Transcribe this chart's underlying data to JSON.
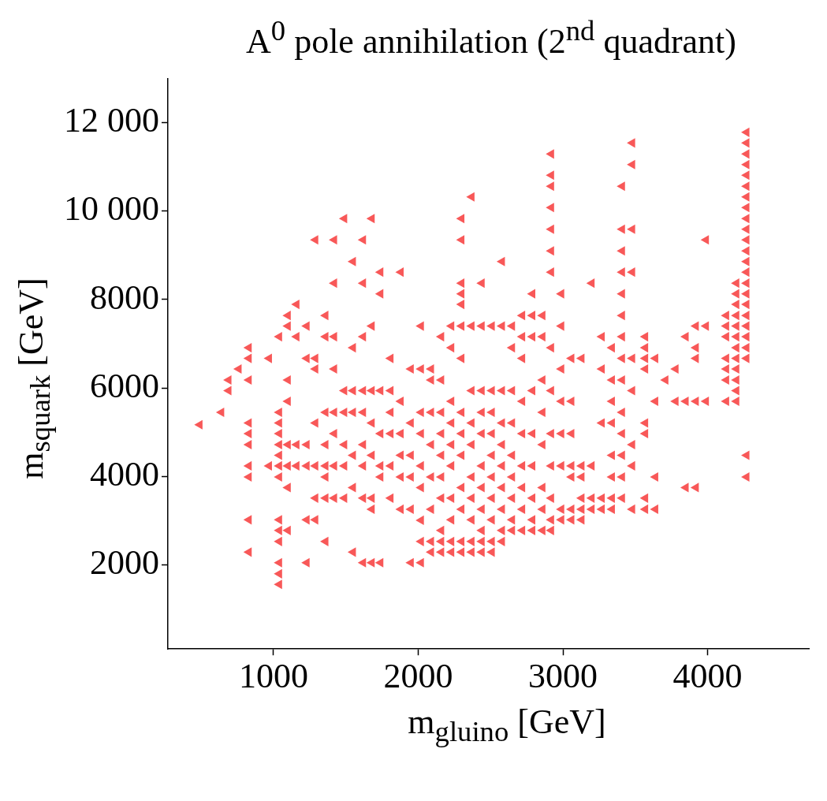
{
  "chart_data": {
    "type": "scatter",
    "title": "A$^{0}$ pole annihilation (2$^{nd}$ quadrant)",
    "xlabel": "m$_{gluino}$ [GeV]",
    "ylabel": "m$_{squark}$ [GeV]",
    "xlim": [
      270,
      4700
    ],
    "ylim": [
      100,
      13000
    ],
    "xticks": [
      1000,
      2000,
      3000,
      4000
    ],
    "yticks": [
      2000,
      4000,
      6000,
      8000,
      {
        "value": 10000,
        "label": "10 000"
      },
      {
        "value": 12000,
        "label": "12 000"
      }
    ],
    "grid": false,
    "marker": "triangle",
    "series": [
      {
        "color": "#f85858",
        "x": [
          490,
          640,
          690,
          690,
          760,
          830,
          830,
          830,
          830,
          830,
          830,
          830,
          830,
          830,
          830,
          970,
          970,
          1040,
          1040,
          1040,
          1040,
          1040,
          1040,
          1040,
          1040,
          1040,
          1040,
          1040,
          1040,
          1040,
          1040,
          1100,
          1100,
          1100,
          1100,
          1100,
          1100,
          1100,
          1100,
          1160,
          1160,
          1160,
          1160,
          1230,
          1230,
          1230,
          1230,
          1230,
          1230,
          1290,
          1290,
          1290,
          1290,
          1290,
          1290,
          1290,
          1360,
          1360,
          1360,
          1360,
          1360,
          1360,
          1360,
          1360,
          1420,
          1420,
          1420,
          1420,
          1420,
          1420,
          1420,
          1420,
          1490,
          1490,
          1490,
          1490,
          1490,
          1490,
          1550,
          1550,
          1550,
          1550,
          1550,
          1550,
          1550,
          1620,
          1620,
          1620,
          1620,
          1620,
          1620,
          1620,
          1620,
          1620,
          1680,
          1680,
          1680,
          1680,
          1680,
          1680,
          1680,
          1680,
          1740,
          1740,
          1740,
          1740,
          1740,
          1740,
          1740,
          1810,
          1810,
          1810,
          1810,
          1810,
          1810,
          1880,
          1880,
          1880,
          1880,
          1880,
          1880,
          1950,
          1950,
          1950,
          1950,
          1950,
          1950,
          2020,
          2020,
          2020,
          2020,
          2020,
          2020,
          2020,
          2020,
          2020,
          2090,
          2090,
          2090,
          2090,
          2090,
          2090,
          2090,
          2090,
          2160,
          2160,
          2160,
          2160,
          2160,
          2160,
          2160,
          2160,
          2160,
          2160,
          2230,
          2230,
          2230,
          2230,
          2230,
          2230,
          2230,
          2230,
          2230,
          2230,
          2300,
          2300,
          2300,
          2300,
          2300,
          2300,
          2300,
          2300,
          2300,
          2300,
          2300,
          2300,
          2300,
          2300,
          2370,
          2370,
          2370,
          2370,
          2370,
          2370,
          2370,
          2370,
          2370,
          2370,
          2440,
          2440,
          2440,
          2440,
          2440,
          2440,
          2440,
          2440,
          2440,
          2440,
          2440,
          2510,
          2510,
          2510,
          2510,
          2510,
          2510,
          2510,
          2510,
          2510,
          2510,
          2580,
          2580,
          2580,
          2580,
          2580,
          2580,
          2580,
          2580,
          2580,
          2580,
          2650,
          2650,
          2650,
          2650,
          2650,
          2650,
          2650,
          2650,
          2650,
          2720,
          2720,
          2720,
          2720,
          2720,
          2720,
          2720,
          2720,
          2720,
          2790,
          2790,
          2790,
          2790,
          2790,
          2790,
          2790,
          2790,
          2790,
          2860,
          2860,
          2860,
          2860,
          2860,
          2860,
          2860,
          2860,
          2920,
          2920,
          2920,
          2920,
          2920,
          2920,
          2920,
          2920,
          2920,
          2920,
          2920,
          2920,
          2920,
          2920,
          2990,
          2990,
          2990,
          2990,
          2990,
          2990,
          2990,
          2990,
          3060,
          3060,
          3060,
          3060,
          3060,
          3060,
          3060,
          3130,
          3130,
          3130,
          3130,
          3130,
          3130,
          3200,
          3200,
          3200,
          3200,
          3270,
          3270,
          3270,
          3270,
          3270,
          3340,
          3340,
          3340,
          3340,
          3340,
          3340,
          3340,
          3340,
          3410,
          3410,
          3410,
          3410,
          3410,
          3410,
          3410,
          3410,
          3410,
          3410,
          3410,
          3410,
          3410,
          3410,
          3480,
          3480,
          3480,
          3480,
          3480,
          3480,
          3480,
          3480,
          3480,
          3570,
          3570,
          3570,
          3570,
          3570,
          3570,
          3570,
          3570,
          3640,
          3640,
          3640,
          3640,
          3710,
          3780,
          3780,
          3850,
          3850,
          3850,
          3920,
          3920,
          3920,
          3920,
          3920,
          3990,
          3990,
          3990,
          4130,
          4130,
          4130,
          4130,
          4130,
          4130,
          4130,
          4200,
          4200,
          4200,
          4200,
          4200,
          4200,
          4200,
          4200,
          4200,
          4200,
          4200,
          4200,
          4270,
          4270,
          4270,
          4270,
          4270,
          4270,
          4270,
          4270,
          4270,
          4270,
          4270,
          4270,
          4270,
          4270,
          4270,
          4270,
          4270,
          4270,
          4270,
          4270,
          4270,
          4270,
          4270,
          4270
        ],
        "values": [
          5170,
          5450,
          5940,
          6180,
          6430,
          2290,
          3020,
          3990,
          4240,
          4720,
          4970,
          5210,
          6180,
          6670,
          6910,
          4240,
          6670,
          1560,
          1800,
          2050,
          2530,
          2780,
          3020,
          3990,
          4240,
          4480,
          4720,
          4970,
          5210,
          5450,
          7160,
          2780,
          3750,
          4240,
          4720,
          5700,
          6180,
          7400,
          7640,
          4240,
          4720,
          7160,
          7890,
          2050,
          3020,
          4240,
          4720,
          6670,
          7400,
          3020,
          3510,
          4240,
          5210,
          6430,
          6670,
          9350,
          2530,
          3510,
          3990,
          4240,
          4720,
          5450,
          7160,
          7640,
          3510,
          4240,
          4970,
          5450,
          6430,
          7160,
          8370,
          9350,
          3510,
          4240,
          4720,
          5450,
          5940,
          9830,
          2290,
          3750,
          4480,
          5450,
          5940,
          6910,
          8860,
          2050,
          3510,
          4240,
          4720,
          5450,
          5940,
          7160,
          8370,
          9350,
          2050,
          3260,
          3510,
          4480,
          5210,
          5940,
          7400,
          9830,
          2050,
          3990,
          4240,
          4970,
          5940,
          8130,
          8620,
          3510,
          4240,
          4970,
          5450,
          5940,
          6670,
          3260,
          3990,
          4480,
          4970,
          5700,
          8620,
          2050,
          3260,
          3990,
          4480,
          5210,
          6430,
          2050,
          2530,
          3010,
          3750,
          4240,
          4970,
          5450,
          6430,
          7400,
          2290,
          2530,
          3260,
          3990,
          4720,
          5450,
          6180,
          6430,
          2290,
          2530,
          2780,
          3510,
          3990,
          4480,
          4970,
          5450,
          6180,
          7160,
          2290,
          2530,
          3020,
          3510,
          4240,
          4720,
          5210,
          5700,
          6910,
          7400,
          2290,
          2530,
          3260,
          3750,
          4480,
          4970,
          5450,
          6670,
          7400,
          7890,
          8130,
          8370,
          9350,
          9830,
          2290,
          2530,
          3020,
          3510,
          3990,
          4720,
          5210,
          5940,
          7400,
          10320,
          2290,
          2530,
          2780,
          3260,
          3750,
          4240,
          4970,
          5450,
          5940,
          7400,
          8370,
          2290,
          2530,
          3020,
          3510,
          3990,
          4480,
          4970,
          5450,
          5940,
          7400,
          2530,
          2780,
          3260,
          3750,
          4240,
          4720,
          5210,
          5940,
          7400,
          8860,
          2780,
          3020,
          3510,
          3990,
          4480,
          5210,
          5940,
          6910,
          7400,
          2780,
          3260,
          3750,
          4240,
          4970,
          5700,
          6670,
          7160,
          7640,
          2780,
          3020,
          3510,
          4240,
          4970,
          5940,
          7160,
          7640,
          8130,
          2780,
          3260,
          3750,
          4720,
          5450,
          6180,
          7160,
          7640,
          2780,
          3020,
          3510,
          4240,
          4970,
          5940,
          6910,
          8620,
          9100,
          9590,
          10080,
          10560,
          10810,
          11290,
          3020,
          3260,
          4240,
          4970,
          5700,
          6430,
          7400,
          8130,
          3020,
          3260,
          3990,
          4240,
          4970,
          5700,
          6670,
          3020,
          3260,
          3510,
          3990,
          4240,
          6670,
          3260,
          3510,
          4240,
          8370,
          3260,
          3510,
          5210,
          6430,
          7160,
          3260,
          3510,
          3990,
          4480,
          5210,
          5700,
          6180,
          6910,
          3510,
          3990,
          4480,
          4970,
          5450,
          6180,
          6670,
          7160,
          7640,
          8130,
          8620,
          9100,
          9590,
          10560,
          3260,
          4240,
          4720,
          5940,
          6670,
          8620,
          9590,
          11050,
          11540,
          3260,
          3510,
          4970,
          5210,
          6430,
          6670,
          6910,
          7160,
          3260,
          3990,
          5700,
          6670,
          6180,
          5700,
          6430,
          3750,
          5700,
          7160,
          3750,
          5700,
          6670,
          6910,
          7400,
          5700,
          7400,
          9350,
          5700,
          6180,
          6430,
          6670,
          7160,
          7400,
          7640,
          5700,
          5940,
          6180,
          6430,
          6670,
          6910,
          7160,
          7400,
          7640,
          7890,
          8130,
          8370,
          3990,
          4480,
          6670,
          6910,
          7160,
          7400,
          7640,
          7890,
          8130,
          8370,
          8620,
          8860,
          9100,
          9350,
          9590,
          9830,
          10080,
          10320,
          10560,
          10810,
          11050,
          11290,
          11540,
          11780
        ]
      }
    ]
  }
}
